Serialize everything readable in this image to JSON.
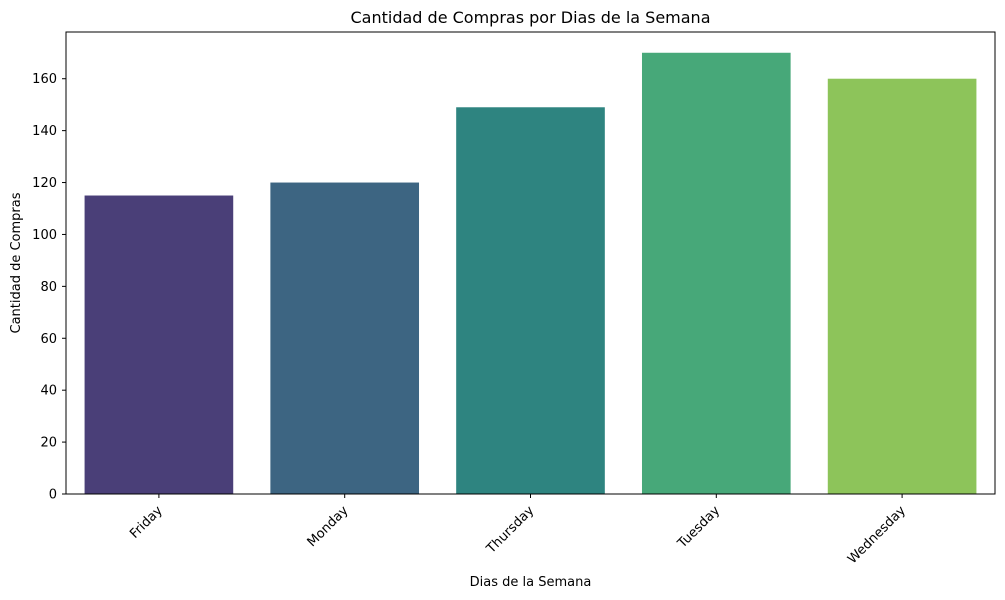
{
  "chart_data": {
    "type": "bar",
    "title": "Cantidad de Compras por Dias de la Semana",
    "xlabel": "Dias de la Semana",
    "ylabel": "Cantidad de Compras",
    "categories": [
      "Friday",
      "Monday",
      "Thursday",
      "Tuesday",
      "Wednesday"
    ],
    "values": [
      115,
      120,
      149,
      170,
      160
    ],
    "colors": [
      "#4a3f78",
      "#3d6582",
      "#2e8480",
      "#47a879",
      "#8dc45a"
    ],
    "ylim": [
      0,
      178
    ],
    "yticks": [
      0,
      20,
      40,
      60,
      80,
      100,
      120,
      140,
      160
    ],
    "grid": false,
    "legend": "none"
  }
}
